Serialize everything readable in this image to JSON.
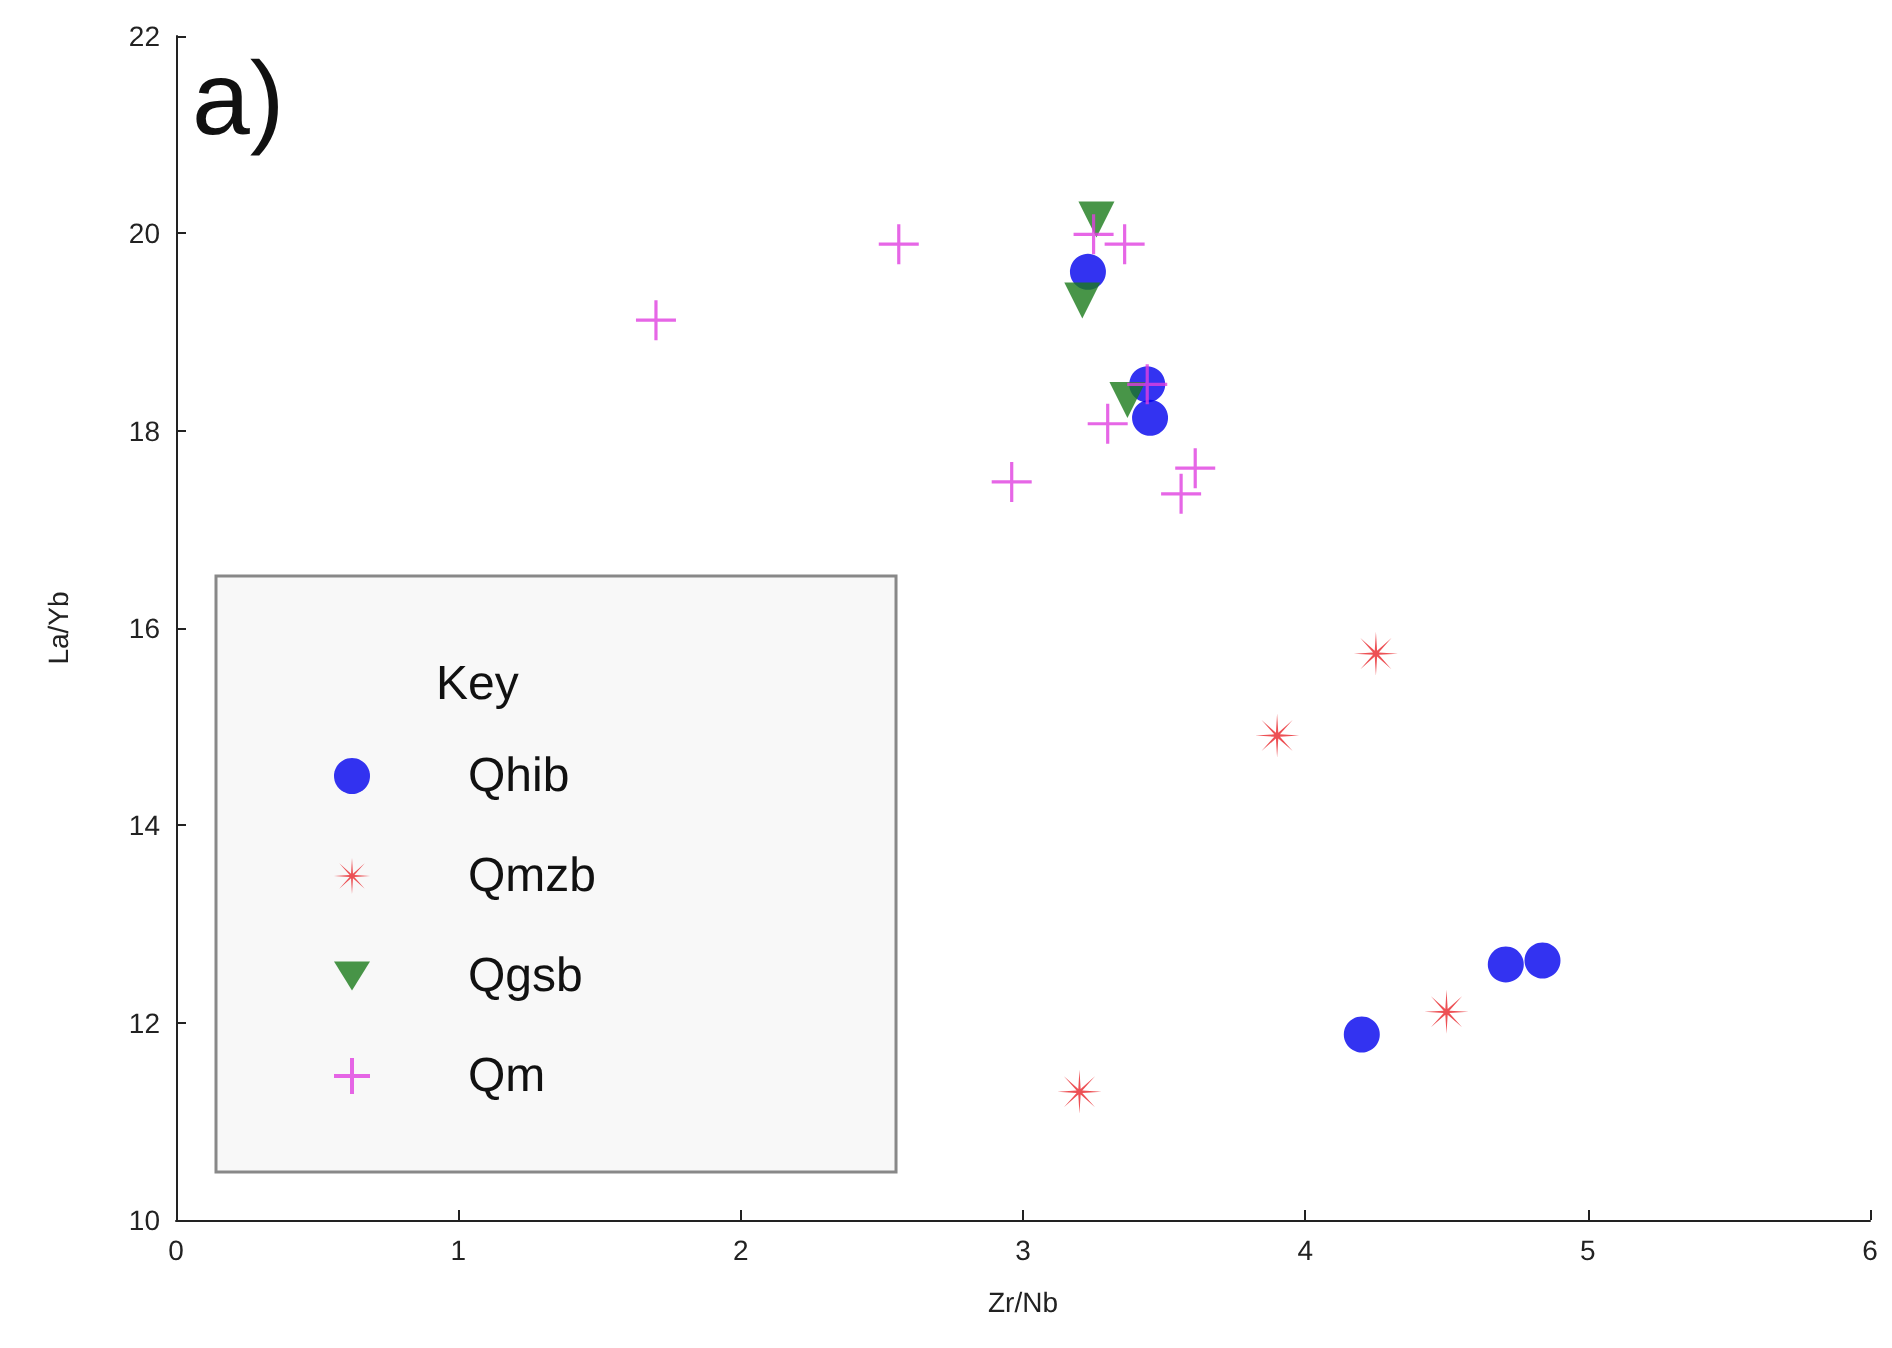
{
  "chart_data": {
    "type": "scatter",
    "xlabel": "Zr/Nb",
    "ylabel": "La/Yb",
    "legend_title": "Key",
    "annotations": [
      "a)"
    ],
    "xlim": [
      0,
      6
    ],
    "xticks": [
      0,
      1,
      2,
      3,
      4,
      5,
      6
    ],
    "ylim": [
      10,
      22
    ],
    "yticks": [
      10,
      12,
      14,
      16,
      18,
      20,
      22
    ],
    "grid": false,
    "legend": "bottom left",
    "series": [
      {
        "name": "Qhib",
        "color": "#0000ee",
        "marker": "circle",
        "x": [
          3.23,
          3.44,
          3.45,
          4.2,
          4.71,
          4.84
        ],
        "values": [
          19.61,
          18.47,
          18.13,
          11.88,
          12.59,
          12.63
        ]
      },
      {
        "name": "Qmzb",
        "color": "#e8262a",
        "marker": "star",
        "x": [
          4.25,
          3.9,
          4.5,
          3.2
        ],
        "values": [
          15.74,
          14.91,
          12.11,
          11.3
        ]
      },
      {
        "name": "Qgsb",
        "color": "#1a7a1a",
        "marker": "triangle",
        "x": [
          3.26,
          3.21,
          3.37
        ],
        "values": [
          20.14,
          19.32,
          18.31
        ]
      },
      {
        "name": "Qm",
        "color": "#e040e0",
        "marker": "cross",
        "x": [
          1.7,
          2.56,
          3.25,
          3.36,
          3.44,
          3.3,
          2.96,
          3.61,
          3.56
        ],
        "values": [
          19.12,
          19.89,
          19.99,
          19.89,
          18.47,
          18.07,
          17.48,
          17.62,
          17.36
        ]
      }
    ]
  }
}
